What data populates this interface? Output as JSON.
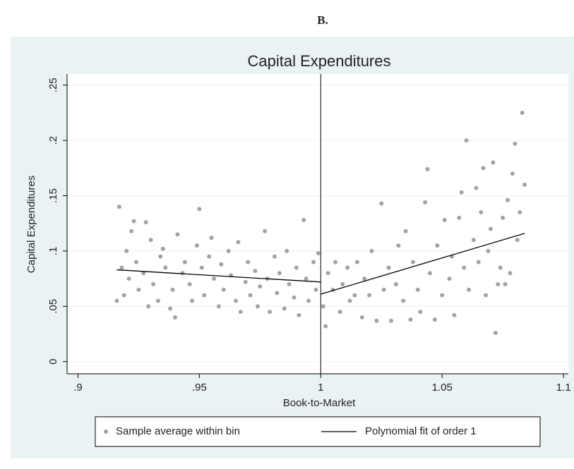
{
  "chart_data": {
    "type": "scatter",
    "panel_label": "B.",
    "title": "Capital Expenditures",
    "x_label": "Book-to-Market",
    "y_label": "Capital Expenditures",
    "xlim": [
      0.8955,
      1.102
    ],
    "ylim": [
      -0.011,
      0.26
    ],
    "xticks": [
      {
        "value": 0.9,
        "label": ".9"
      },
      {
        "value": 0.95,
        "label": ".95"
      },
      1,
      1.05,
      1.1
    ],
    "yticks": [
      0,
      {
        "value": 0.05,
        "label": ".05"
      },
      {
        "value": 0.1,
        "label": ".1"
      },
      {
        "value": 0.15,
        "label": ".15"
      },
      {
        "value": 0.2,
        "label": ".2"
      },
      {
        "value": 0.25,
        "label": ".25"
      }
    ],
    "grid": true,
    "xline": 1,
    "legend": "bottom",
    "series": [
      {
        "name": "Sample average within bin",
        "type": "scatter",
        "color": "#a3a3a3",
        "x": [
          0.916,
          0.917,
          0.918,
          0.919,
          0.92,
          0.921,
          0.922,
          0.923,
          0.924,
          0.925,
          0.927,
          0.928,
          0.929,
          0.93,
          0.931,
          0.933,
          0.934,
          0.935,
          0.936,
          0.938,
          0.939,
          0.94,
          0.941,
          0.943,
          0.944,
          0.946,
          0.947,
          0.949,
          0.95,
          0.951,
          0.952,
          0.954,
          0.955,
          0.956,
          0.958,
          0.959,
          0.96,
          0.962,
          0.963,
          0.965,
          0.966,
          0.967,
          0.969,
          0.97,
          0.971,
          0.973,
          0.974,
          0.975,
          0.977,
          0.978,
          0.979,
          0.981,
          0.982,
          0.983,
          0.985,
          0.986,
          0.987,
          0.989,
          0.99,
          0.991,
          0.993,
          0.994,
          0.995,
          0.997,
          0.998,
          0.999,
          1.001,
          1.002,
          1.003,
          1.005,
          1.006,
          1.008,
          1.009,
          1.011,
          1.012,
          1.014,
          1.015,
          1.017,
          1.018,
          1.02,
          1.021,
          1.023,
          1.025,
          1.026,
          1.028,
          1.029,
          1.031,
          1.032,
          1.034,
          1.035,
          1.037,
          1.038,
          1.04,
          1.041,
          1.043,
          1.044,
          1.045,
          1.047,
          1.048,
          1.05,
          1.051,
          1.053,
          1.054,
          1.055,
          1.057,
          1.058,
          1.059,
          1.06,
          1.061,
          1.063,
          1.064,
          1.065,
          1.066,
          1.067,
          1.068,
          1.069,
          1.07,
          1.071,
          1.072,
          1.073,
          1.074,
          1.075,
          1.076,
          1.077,
          1.078,
          1.079,
          1.08,
          1.081,
          1.082,
          1.083,
          1.084
        ],
        "values": [
          0.055,
          0.14,
          0.085,
          0.06,
          0.1,
          0.075,
          0.118,
          0.127,
          0.09,
          0.065,
          0.08,
          0.126,
          0.05,
          0.11,
          0.07,
          0.055,
          0.095,
          0.102,
          0.085,
          0.048,
          0.065,
          0.04,
          0.115,
          0.08,
          0.09,
          0.07,
          0.055,
          0.105,
          0.138,
          0.085,
          0.06,
          0.095,
          0.112,
          0.075,
          0.05,
          0.088,
          0.065,
          0.1,
          0.078,
          0.055,
          0.108,
          0.045,
          0.072,
          0.09,
          0.06,
          0.082,
          0.05,
          0.068,
          0.118,
          0.075,
          0.045,
          0.095,
          0.062,
          0.08,
          0.048,
          0.1,
          0.07,
          0.058,
          0.085,
          0.042,
          0.128,
          0.075,
          0.055,
          0.09,
          0.065,
          0.098,
          0.05,
          0.032,
          0.08,
          0.065,
          0.09,
          0.045,
          0.07,
          0.085,
          0.055,
          0.06,
          0.09,
          0.04,
          0.075,
          0.06,
          0.1,
          0.037,
          0.143,
          0.065,
          0.085,
          0.037,
          0.07,
          0.105,
          0.055,
          0.118,
          0.038,
          0.09,
          0.065,
          0.045,
          0.144,
          0.174,
          0.08,
          0.038,
          0.105,
          0.06,
          0.128,
          0.075,
          0.095,
          0.042,
          0.13,
          0.153,
          0.085,
          0.2,
          0.065,
          0.11,
          0.157,
          0.09,
          0.135,
          0.175,
          0.06,
          0.1,
          0.12,
          0.18,
          0.026,
          0.07,
          0.085,
          0.13,
          0.07,
          0.146,
          0.08,
          0.17,
          0.197,
          0.11,
          0.135,
          0.225,
          0.16
        ]
      },
      {
        "name": "Polynomial fit of order 1",
        "type": "line",
        "color": "#000000",
        "x": [
          0.916,
          1.0,
          null,
          1.0,
          1.084
        ],
        "values": [
          0.083,
          0.072,
          null,
          0.061,
          0.116
        ]
      }
    ]
  }
}
